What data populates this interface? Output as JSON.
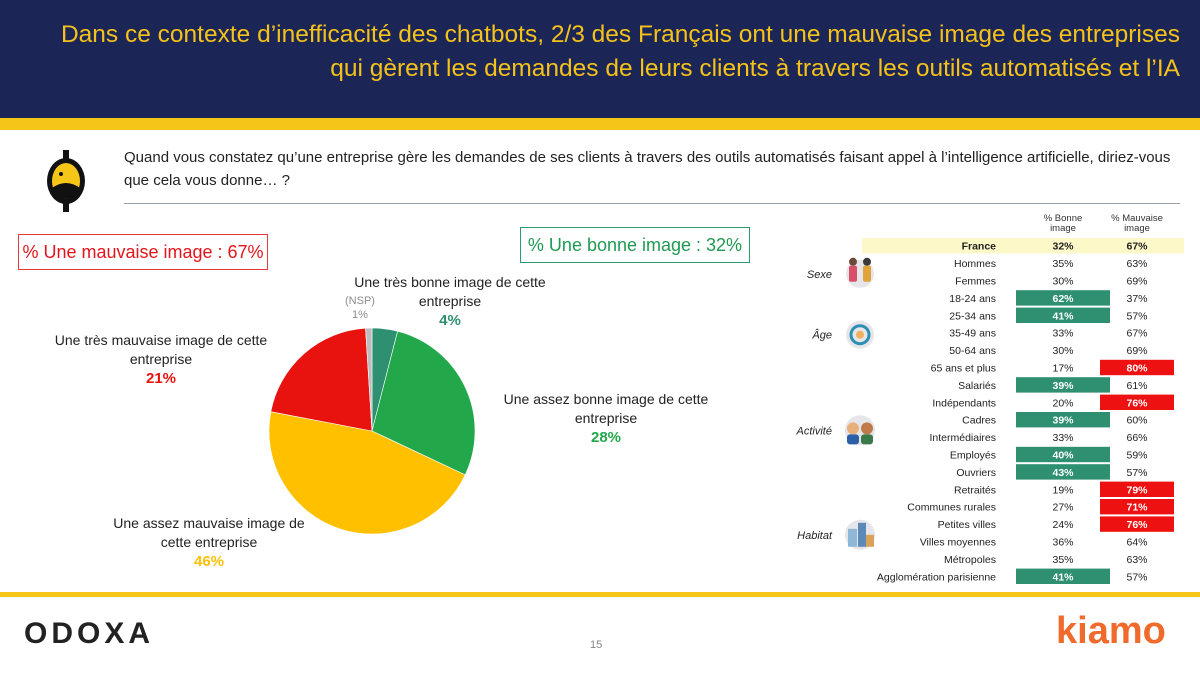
{
  "header": {
    "title": "Dans ce contexte d’inefficacité des chatbots, 2/3 des Français ont une mauvaise image des entreprises qui gèrent les demandes de leurs clients à travers les outils automatisés et l’IA"
  },
  "question": "Quand vous constatez qu’une entreprise gère les demandes de ses clients à travers des outils automatisés faisant appel à l’intelligence artificielle, diriez-vous que cela vous donne… ?",
  "summary": {
    "bad": "% Une mauvaise image : 67%",
    "good": "% Une bonne image : 32%"
  },
  "footer": {
    "page": "15",
    "odoxa_logo": "ODOXA",
    "kiamo_logo": "kiamo"
  },
  "colors": {
    "navy": "#1b2556",
    "yellow": "#f5c518",
    "red": "#e3141b",
    "green": "#22a84a",
    "teal": "#2e9070",
    "gold": "#ffc000"
  },
  "chart_data": [
    {
      "type": "pie",
      "start": "top",
      "direction": "clockwise",
      "slices": [
        {
          "label": "Une très bonne image de cette entreprise",
          "pct_label": "4%",
          "value": 4,
          "color": "#2e9070",
          "text_color": "#2e9070"
        },
        {
          "label": "Une assez bonne image de cette entreprise",
          "pct_label": "28%",
          "value": 28,
          "color": "#22a84a",
          "text_color": "#22a84a"
        },
        {
          "label": "Une assez mauvaise image de cette entreprise",
          "pct_label": "46%",
          "value": 46,
          "color": "#ffc000",
          "text_color": "#ffc000"
        },
        {
          "label": "Une très mauvaise image de cette entreprise",
          "pct_label": "21%",
          "value": 21,
          "color": "#e8130f",
          "text_color": "#e8130f"
        },
        {
          "label": "(NSP)",
          "pct_label": "1%",
          "value": 1,
          "color": "#bdbdbd",
          "text_color": "#8c8c8c"
        }
      ]
    },
    {
      "type": "table",
      "columns": [
        "% Bonne image",
        "% Mauvaise image"
      ],
      "highlight_colors": {
        "good": "#2e9070",
        "bad": "#ee1111",
        "france": "#fdf8c8"
      },
      "groups": [
        {
          "name": "",
          "rows": [
            {
              "label": "France",
              "good": "32%",
              "bad": "67%",
              "hl": "france"
            }
          ]
        },
        {
          "name": "Sexe",
          "icon": "people-icon",
          "rows": [
            {
              "label": "Hommes",
              "good": "35%",
              "bad": "63%"
            },
            {
              "label": "Femmes",
              "good": "30%",
              "bad": "69%"
            }
          ]
        },
        {
          "name": "Âge",
          "icon": "age-cycle-icon",
          "rows": [
            {
              "label": "18-24 ans",
              "good": "62%",
              "bad": "37%",
              "hl": "good"
            },
            {
              "label": "25-34 ans",
              "good": "41%",
              "bad": "57%",
              "hl": "good"
            },
            {
              "label": "35-49 ans",
              "good": "33%",
              "bad": "67%"
            },
            {
              "label": "50-64 ans",
              "good": "30%",
              "bad": "69%"
            },
            {
              "label": "65 ans et plus",
              "good": "17%",
              "bad": "80%",
              "hl": "bad"
            }
          ]
        },
        {
          "name": "Activité",
          "icon": "workers-icon",
          "rows": [
            {
              "label": "Salariés",
              "good": "39%",
              "bad": "61%",
              "hl": "good"
            },
            {
              "label": "Indépendants",
              "good": "20%",
              "bad": "76%",
              "hl": "bad"
            },
            {
              "label": "Cadres",
              "good": "39%",
              "bad": "60%",
              "hl": "good"
            },
            {
              "label": "Intermédiaires",
              "good": "33%",
              "bad": "66%"
            },
            {
              "label": "Employés",
              "good": "40%",
              "bad": "59%",
              "hl": "good"
            },
            {
              "label": "Ouvriers",
              "good": "43%",
              "bad": "57%",
              "hl": "good"
            }
          ]
        },
        {
          "name": "Habitat",
          "icon": "city-icon",
          "rows": [
            {
              "label": "Retraités",
              "good": "19%",
              "bad": "79%",
              "hl": "bad"
            },
            {
              "label": "Communes rurales",
              "good": "27%",
              "bad": "71%",
              "hl": "bad"
            },
            {
              "label": "Petites villes",
              "good": "24%",
              "bad": "76%",
              "hl": "bad"
            },
            {
              "label": "Villes  moyennes",
              "good": "36%",
              "bad": "64%"
            },
            {
              "label": "Métropoles",
              "good": "35%",
              "bad": "63%"
            },
            {
              "label": "Agglomération parisienne",
              "good": "41%",
              "bad": "57%",
              "hl": "good"
            }
          ]
        }
      ]
    }
  ]
}
